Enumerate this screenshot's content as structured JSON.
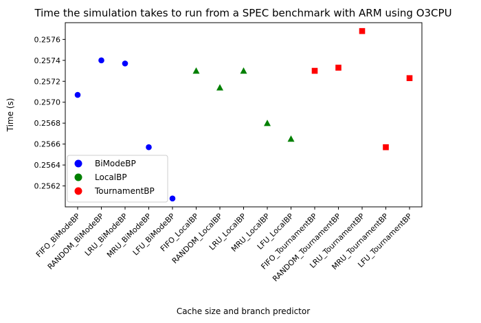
{
  "chart_data": {
    "type": "scatter",
    "title": "Time the simulation takes to run from a SPEC benchmark with ARM using O3CPU",
    "xlabel": "Cache size and branch predictor",
    "ylabel": "Time (s)",
    "categories": [
      "FIFO_BiModeBP",
      "RANDOM_BiModeBP",
      "LRU_BiModeBP",
      "MRU_BiModeBP",
      "LFU_BiModeBP",
      "FIFO_LocalBP",
      "RANDOM_LocalBP",
      "LRU_LocalBP",
      "MRU_LocalBP",
      "LFU_LocalBP",
      "FIFO_TournamentBP",
      "RANDOM_TournamentBP",
      "LRU_TournamentBP",
      "MRU_TournamentBP",
      "LFU_TournamentBP"
    ],
    "ylim": [
      0.256,
      0.25776
    ],
    "yticks": [
      "0.2562",
      "0.2564",
      "0.2566",
      "0.2568",
      "0.2570",
      "0.2572",
      "0.2574",
      "0.2576"
    ],
    "ytick_values": [
      0.2562,
      0.2564,
      0.2566,
      0.2568,
      0.257,
      0.2572,
      0.2574,
      0.2576
    ],
    "grid": false,
    "legend_position": "lower-left",
    "series": [
      {
        "name": "BiModeBP",
        "color": "#0000ff",
        "marker": "circle",
        "x_index": [
          0,
          1,
          2,
          3,
          4
        ],
        "values": [
          0.25707,
          0.2574,
          0.25737,
          0.25657,
          0.25608
        ]
      },
      {
        "name": "LocalBP",
        "color": "#008000",
        "marker": "triangle",
        "x_index": [
          5,
          6,
          7,
          8,
          9
        ],
        "values": [
          0.2573,
          0.25714,
          0.2573,
          0.2568,
          0.25665
        ]
      },
      {
        "name": "TournamentBP",
        "color": "#ff0000",
        "marker": "square",
        "x_index": [
          10,
          11,
          12,
          13,
          14
        ],
        "values": [
          0.2573,
          0.25733,
          0.25768,
          0.25657,
          0.25723
        ]
      }
    ]
  }
}
